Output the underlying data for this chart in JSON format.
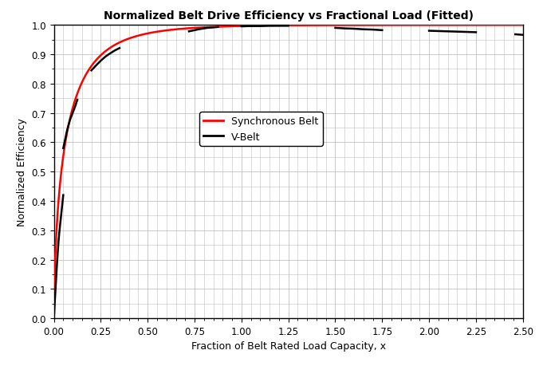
{
  "title": "Normalized Belt Drive Efficiency vs Fractional Load (Fitted)",
  "xlabel": "Fraction of Belt Rated Load Capacity, x",
  "ylabel": "Normalized Efficiency",
  "xlim": [
    0.0,
    2.5
  ],
  "ylim": [
    0.0,
    1.0
  ],
  "xticks": [
    0.0,
    0.25,
    0.5,
    0.75,
    1.0,
    1.25,
    1.5,
    1.75,
    2.0,
    2.25,
    2.5
  ],
  "yticks": [
    0.0,
    0.1,
    0.2,
    0.3,
    0.4,
    0.5,
    0.6,
    0.7,
    0.8,
    0.9,
    1.0
  ],
  "sync_color": "#ff0000",
  "vbelt_color": "#000000",
  "sync_linewidth": 1.8,
  "vbelt_linewidth": 1.8,
  "legend_labels": [
    "Synchronous Belt",
    "V-Belt"
  ],
  "background_color": "#ffffff",
  "grid_color": "#c0c0c0",
  "vbelt_segments": [
    {
      "x": [
        0.0,
        0.005,
        0.01,
        0.015,
        0.02,
        0.025,
        0.03,
        0.04,
        0.05
      ],
      "y": [
        0.0,
        0.06,
        0.115,
        0.17,
        0.22,
        0.265,
        0.3,
        0.36,
        0.42
      ]
    },
    {
      "x": [
        0.05,
        0.06,
        0.07,
        0.085,
        0.1,
        0.115,
        0.125
      ],
      "y": [
        0.58,
        0.61,
        0.64,
        0.675,
        0.7,
        0.725,
        0.745
      ]
    },
    {
      "x": [
        0.2,
        0.225,
        0.25,
        0.275,
        0.3,
        0.325,
        0.35
      ],
      "y": [
        0.845,
        0.862,
        0.878,
        0.892,
        0.903,
        0.913,
        0.921
      ]
    },
    {
      "x": [
        0.72,
        0.75,
        0.78,
        0.8,
        0.82,
        0.84,
        0.86,
        0.875
      ],
      "y": [
        0.978,
        0.982,
        0.986,
        0.988,
        0.99,
        0.991,
        0.992,
        0.993
      ]
    },
    {
      "x": [
        1.0,
        1.05,
        1.1,
        1.15,
        1.2,
        1.25
      ],
      "y": [
        0.995,
        0.996,
        0.996,
        0.997,
        0.997,
        0.997
      ]
    },
    {
      "x": [
        1.5,
        1.55,
        1.6,
        1.65,
        1.7,
        1.75
      ],
      "y": [
        0.99,
        0.988,
        0.987,
        0.985,
        0.984,
        0.982
      ]
    },
    {
      "x": [
        2.0,
        2.05,
        2.1,
        2.15,
        2.2,
        2.25
      ],
      "y": [
        0.98,
        0.979,
        0.978,
        0.977,
        0.976,
        0.975
      ]
    },
    {
      "x": [
        2.46,
        2.5
      ],
      "y": [
        0.968,
        0.966
      ]
    }
  ],
  "sync_k": 5.53,
  "sync_p": 0.6425
}
